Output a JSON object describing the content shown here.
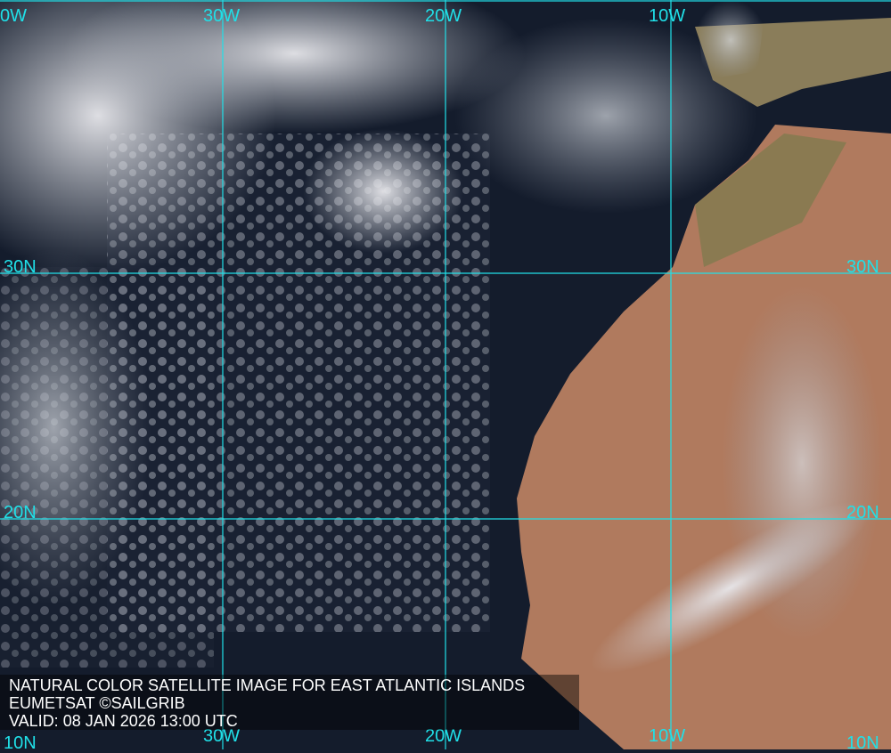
{
  "caption": {
    "title": "NATURAL COLOR SATELLITE IMAGE FOR EAST ATLANTIC ISLANDS",
    "credit": "EUMETSAT ©SAILGRIB",
    "valid": "VALID:  08 JAN 2026 13:00 UTC"
  },
  "grid": {
    "longitudes_top": [
      "0W",
      "30W",
      "20W",
      "10W"
    ],
    "longitudes_bottom": [
      "30W",
      "20W",
      "10W"
    ],
    "latitudes_left": [
      "30N",
      "20N",
      "10N"
    ],
    "latitudes_right": [
      "30N",
      "20N",
      "10N"
    ],
    "line_color": "#20e0e8"
  },
  "colors": {
    "ocean": "#141c2c",
    "land": "#b07a5e",
    "cloud": "#e6e6ea"
  }
}
